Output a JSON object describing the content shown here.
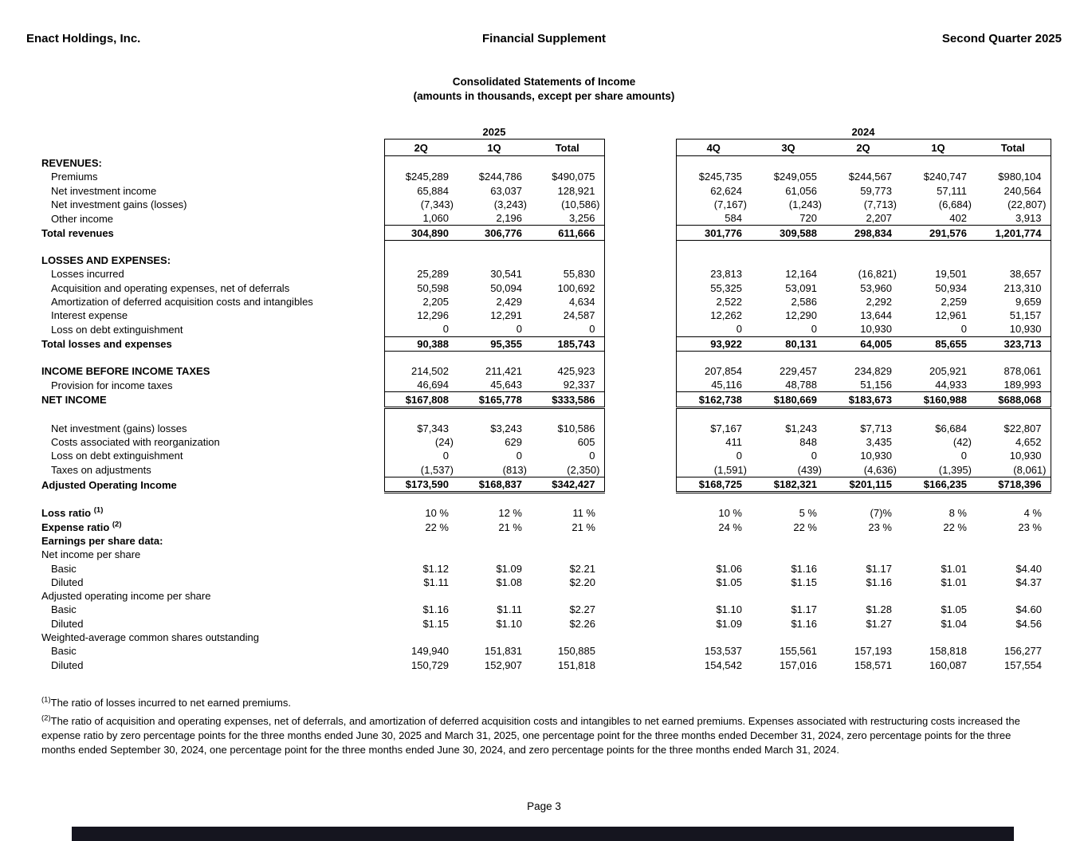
{
  "page_header": {
    "company": "Enact Holdings, Inc.",
    "title": "Financial Supplement",
    "period": "Second Quarter 2025"
  },
  "statement_title": {
    "line1": "Consolidated Statements of Income",
    "line2": "(amounts in thousands, except per share amounts)"
  },
  "table": {
    "groups": [
      {
        "year": "2025",
        "cols": [
          "2Q",
          "1Q",
          "Total"
        ]
      },
      {
        "year": "2024",
        "cols": [
          "4Q",
          "3Q",
          "2Q",
          "1Q",
          "Total"
        ]
      }
    ],
    "rows": [
      {
        "label": "REVENUES:",
        "bold": "label",
        "box": true,
        "values": []
      },
      {
        "label": "Premiums",
        "indent": 1,
        "box": true,
        "values": [
          "$245,289",
          "$244,786",
          "$490,075",
          "$245,735",
          "$249,055",
          "$244,567",
          "$240,747",
          "$980,104"
        ]
      },
      {
        "label": "Net investment income",
        "indent": 1,
        "box": true,
        "values": [
          "65,884",
          "63,037",
          "128,921",
          "62,624",
          "61,056",
          "59,773",
          "57,111",
          "240,564"
        ]
      },
      {
        "label": "Net investment gains (losses)",
        "indent": 1,
        "box": true,
        "values": [
          "(7,343)",
          "(3,243)",
          "(10,586)",
          "(7,167)",
          "(1,243)",
          "(7,713)",
          "(6,684)",
          "(22,807)"
        ]
      },
      {
        "label": "Other income",
        "indent": 1,
        "box": true,
        "values": [
          "1,060",
          "2,196",
          "3,256",
          "584",
          "720",
          "2,207",
          "402",
          "3,913"
        ]
      },
      {
        "label": "Total revenues",
        "bold": true,
        "box": true,
        "rule": "above+below",
        "values": [
          "304,890",
          "306,776",
          "611,666",
          "301,776",
          "309,588",
          "298,834",
          "291,576",
          "1,201,774"
        ]
      },
      {
        "spacer": true,
        "box": true
      },
      {
        "label": "LOSSES AND EXPENSES:",
        "bold": "label",
        "box": true,
        "values": []
      },
      {
        "label": "Losses incurred",
        "indent": 1,
        "box": true,
        "values": [
          "25,289",
          "30,541",
          "55,830",
          "23,813",
          "12,164",
          "(16,821)",
          "19,501",
          "38,657"
        ]
      },
      {
        "label": "Acquisition and operating expenses, net of deferrals",
        "indent": 1,
        "box": true,
        "values": [
          "50,598",
          "50,094",
          "100,692",
          "55,325",
          "53,091",
          "53,960",
          "50,934",
          "213,310"
        ]
      },
      {
        "label": "Amortization of deferred acquisition costs and intangibles",
        "indent": 1,
        "box": true,
        "values": [
          "2,205",
          "2,429",
          "4,634",
          "2,522",
          "2,586",
          "2,292",
          "2,259",
          "9,659"
        ]
      },
      {
        "label": "Interest expense",
        "indent": 1,
        "box": true,
        "values": [
          "12,296",
          "12,291",
          "24,587",
          "12,262",
          "12,290",
          "13,644",
          "12,961",
          "51,157"
        ]
      },
      {
        "label": "Loss on debt extinguishment",
        "indent": 1,
        "box": true,
        "values": [
          "0",
          "0",
          "0",
          "0",
          "0",
          "10,930",
          "0",
          "10,930"
        ]
      },
      {
        "label": "Total losses and expenses",
        "bold": true,
        "box": true,
        "rule": "above+below",
        "values": [
          "90,388",
          "95,355",
          "185,743",
          "93,922",
          "80,131",
          "64,005",
          "85,655",
          "323,713"
        ]
      },
      {
        "spacer": true,
        "box": true
      },
      {
        "label": "INCOME BEFORE INCOME TAXES",
        "bold": "label",
        "box": true,
        "values": [
          "214,502",
          "211,421",
          "425,923",
          "207,854",
          "229,457",
          "234,829",
          "205,921",
          "878,061"
        ]
      },
      {
        "label": "Provision for income taxes",
        "indent": 1,
        "box": true,
        "values": [
          "46,694",
          "45,643",
          "92,337",
          "45,116",
          "48,788",
          "51,156",
          "44,933",
          "189,993"
        ]
      },
      {
        "label": "NET INCOME",
        "bold": true,
        "box": true,
        "rule": "above+dbl",
        "values": [
          "$167,808",
          "$165,778",
          "$333,586",
          "$162,738",
          "$180,669",
          "$183,673",
          "$160,988",
          "$688,068"
        ]
      },
      {
        "spacer": true,
        "box": true
      },
      {
        "label": "Net investment (gains) losses",
        "indent": 1,
        "box": true,
        "values": [
          "$7,343",
          "$3,243",
          "$10,586",
          "$7,167",
          "$1,243",
          "$7,713",
          "$6,684",
          "$22,807"
        ]
      },
      {
        "label": "Costs associated with reorganization",
        "indent": 1,
        "box": true,
        "values": [
          "(24)",
          "629",
          "605",
          "411",
          "848",
          "3,435",
          "(42)",
          "4,652"
        ]
      },
      {
        "label": "Loss on debt extinguishment",
        "indent": 1,
        "box": true,
        "values": [
          "0",
          "0",
          "0",
          "0",
          "0",
          "10,930",
          "0",
          "10,930"
        ]
      },
      {
        "label": "Taxes on adjustments",
        "indent": 1,
        "box": true,
        "values": [
          "(1,537)",
          "(813)",
          "(2,350)",
          "(1,591)",
          "(439)",
          "(4,636)",
          "(1,395)",
          "(8,061)"
        ]
      },
      {
        "label": "Adjusted Operating Income",
        "bold": true,
        "box": true,
        "rule": "above+dbl",
        "values": [
          "$173,590",
          "$168,837",
          "$342,427",
          "$168,725",
          "$182,321",
          "$201,115",
          "$166,235",
          "$718,396"
        ]
      },
      {
        "spacer": true
      },
      {
        "label": "Loss ratio",
        "sup": "(1)",
        "bold": "label",
        "values": [
          "10 %",
          "12 %",
          "11 %",
          "10 %",
          "5 %",
          "(7)%",
          "8 %",
          "4 %"
        ]
      },
      {
        "label": "Expense ratio",
        "sup": "(2)",
        "bold": "label",
        "values": [
          "22 %",
          "21 %",
          "21 %",
          "24 %",
          "22 %",
          "23 %",
          "22 %",
          "23 %"
        ]
      },
      {
        "label": "Earnings per share data:",
        "bold": "label",
        "values": []
      },
      {
        "label": "Net income per share",
        "values": []
      },
      {
        "label": "Basic",
        "indent": 1,
        "values": [
          "$1.12",
          "$1.09",
          "$2.21",
          "$1.06",
          "$1.16",
          "$1.17",
          "$1.01",
          "$4.40"
        ]
      },
      {
        "label": "Diluted",
        "indent": 1,
        "values": [
          "$1.11",
          "$1.08",
          "$2.20",
          "$1.05",
          "$1.15",
          "$1.16",
          "$1.01",
          "$4.37"
        ]
      },
      {
        "label": "Adjusted operating income per share",
        "values": []
      },
      {
        "label": "Basic",
        "indent": 1,
        "values": [
          "$1.16",
          "$1.11",
          "$2.27",
          "$1.10",
          "$1.17",
          "$1.28",
          "$1.05",
          "$4.60"
        ]
      },
      {
        "label": "Diluted",
        "indent": 1,
        "values": [
          "$1.15",
          "$1.10",
          "$2.26",
          "$1.09",
          "$1.16",
          "$1.27",
          "$1.04",
          "$4.56"
        ]
      },
      {
        "label": "Weighted-average common shares outstanding",
        "values": []
      },
      {
        "label": "Basic",
        "indent": 1,
        "values": [
          "149,940",
          "151,831",
          "150,885",
          "153,537",
          "155,561",
          "157,193",
          "158,818",
          "156,277"
        ]
      },
      {
        "label": "Diluted",
        "indent": 1,
        "values": [
          "150,729",
          "152,907",
          "151,818",
          "154,542",
          "157,016",
          "158,571",
          "160,087",
          "157,554"
        ]
      }
    ]
  },
  "footnotes": [
    {
      "marker": "(1)",
      "text": "The ratio of losses incurred to net earned premiums."
    },
    {
      "marker": "(2)",
      "text": "The ratio of acquisition and operating expenses, net of deferrals, and amortization of deferred acquisition costs and intangibles to net earned premiums. Expenses associated with restructuring costs increased the expense ratio by zero percentage points for the three months ended June 30, 2025 and March 31, 2025, one percentage point for the three months ended December 31, 2024, zero percentage points for the three months ended September 30, 2024, one percentage point for the three months ended June 30, 2024, and zero percentage points for the three months ended March 31, 2024."
    }
  ],
  "footer": {
    "page_label": "Page 3"
  },
  "colors": {
    "footer_bar": "#15151f",
    "text": "#000000",
    "background": "#ffffff"
  }
}
